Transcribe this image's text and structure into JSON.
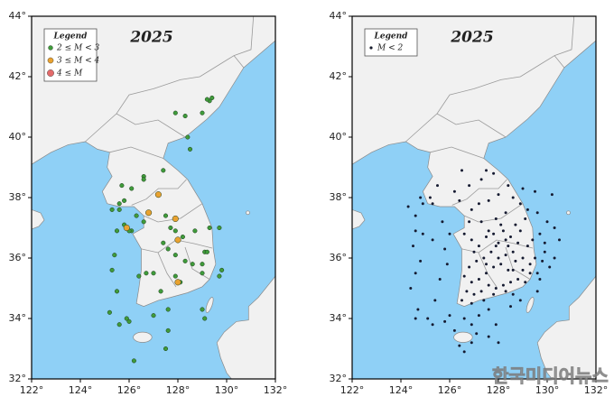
{
  "watermark": "한국미디어뉴스",
  "chart_data": [
    {
      "type": "scatter",
      "title": "2025",
      "legend_title": "Legend",
      "legend": "upper left",
      "xlim": [
        122,
        132
      ],
      "ylim": [
        32,
        44
      ],
      "xticks": [
        {
          "value": 122,
          "label": "122°"
        },
        {
          "value": 124,
          "label": "124°"
        },
        {
          "value": 126,
          "label": "126°"
        },
        {
          "value": 128,
          "label": "128°"
        },
        {
          "value": 130,
          "label": "130°"
        },
        {
          "value": 132,
          "label": "132°"
        }
      ],
      "yticks": [
        {
          "value": 32,
          "label": "32°"
        },
        {
          "value": 34,
          "label": "34°"
        },
        {
          "value": 36,
          "label": "36°"
        },
        {
          "value": 38,
          "label": "38°"
        },
        {
          "value": 40,
          "label": "40°"
        },
        {
          "value": 42,
          "label": "42°"
        },
        {
          "value": 44,
          "label": "44°"
        }
      ],
      "series": [
        {
          "name": "2 ≤ M < 3",
          "color": "#3f9b3a",
          "x": [
            129.3,
            129.4,
            129.2,
            129.0,
            128.3,
            127.9,
            128.4,
            128.5,
            127.4,
            126.6,
            126.6,
            125.7,
            126.1,
            125.8,
            125.6,
            125.3,
            125.6,
            125.8,
            125.5,
            126.1,
            126.3,
            126.6,
            127.5,
            127.7,
            127.9,
            128.2,
            127.4,
            127.6,
            127.9,
            128.3,
            128.7,
            129.3,
            129.7,
            129.1,
            129.2,
            128.6,
            129.0,
            129.8,
            129.7,
            129.0,
            128.1,
            127.9,
            127.0,
            126.7,
            127.3,
            127.6,
            129.0,
            129.1,
            126.4,
            126.0,
            125.4,
            125.3,
            125.5,
            125.2,
            125.9,
            126.0,
            125.6,
            127.0,
            127.6,
            126.2,
            127.5
          ],
          "y": [
            41.2,
            41.3,
            41.25,
            40.8,
            40.7,
            40.8,
            40.0,
            39.6,
            38.9,
            38.7,
            38.6,
            38.4,
            38.3,
            37.9,
            37.8,
            37.6,
            37.6,
            37.1,
            36.9,
            36.9,
            37.4,
            37.2,
            37.4,
            37.0,
            36.9,
            36.7,
            36.5,
            36.3,
            36.1,
            35.9,
            36.9,
            37.0,
            37.0,
            36.2,
            36.2,
            35.8,
            35.8,
            35.6,
            35.4,
            35.5,
            35.2,
            35.4,
            35.5,
            35.5,
            34.9,
            34.3,
            34.3,
            34.0,
            35.4,
            36.9,
            36.1,
            35.6,
            34.9,
            34.2,
            34.0,
            33.9,
            33.8,
            34.1,
            33.6,
            32.6,
            33.0
          ]
        },
        {
          "name": "3 ≤ M < 4",
          "color": "#e9a230",
          "x": [
            127.2,
            126.8,
            127.9,
            125.9,
            128.0,
            128.0
          ],
          "y": [
            38.1,
            37.5,
            37.3,
            37.0,
            36.6,
            35.2
          ]
        },
        {
          "name": "4 ≤ M",
          "color": "#e36a6a",
          "x": [],
          "y": []
        }
      ]
    },
    {
      "type": "scatter",
      "title": "2025",
      "legend_title": "Legend",
      "legend": "upper left",
      "xlim": [
        122,
        132
      ],
      "ylim": [
        32,
        44
      ],
      "xticks": [
        {
          "value": 122,
          "label": "122°"
        },
        {
          "value": 124,
          "label": "124°"
        },
        {
          "value": 126,
          "label": "126°"
        },
        {
          "value": 128,
          "label": "128°"
        },
        {
          "value": 130,
          "label": "130°"
        },
        {
          "value": 132,
          "label": "132°"
        }
      ],
      "yticks": [
        {
          "value": 32,
          "label": "32°"
        },
        {
          "value": 34,
          "label": "34°"
        },
        {
          "value": 36,
          "label": "36°"
        },
        {
          "value": 38,
          "label": "38°"
        },
        {
          "value": 40,
          "label": "40°"
        },
        {
          "value": 42,
          "label": "42°"
        },
        {
          "value": 44,
          "label": "44°"
        }
      ],
      "series": [
        {
          "name": "M < 2",
          "color": "#151a30",
          "x": [
            126.8,
            126.2,
            127.3,
            127.8,
            126.5,
            127.5,
            125.5,
            125.2,
            124.8,
            124.9,
            125.3,
            124.3,
            124.6,
            124.6,
            124.5,
            124.8,
            124.6,
            124.4,
            124.7,
            124.6,
            125.1,
            125.4,
            125.6,
            125.9,
            125.8,
            125.3,
            125.7,
            126.0,
            124.9,
            126.4,
            126.9,
            127.2,
            127.6,
            128.0,
            128.4,
            128.6,
            128.9,
            129.1,
            128.3,
            127.9,
            127.3,
            126.8,
            126.6,
            126.9,
            127.2,
            127.5,
            127.8,
            128.0,
            128.2,
            128.5,
            128.8,
            128.6,
            128.3,
            128.0,
            127.7,
            127.4,
            127.1,
            126.8,
            126.6,
            126.9,
            127.2,
            127.5,
            127.8,
            128.1,
            128.4,
            128.7,
            129.0,
            129.2,
            129.4,
            129.5,
            129.3,
            129.0,
            128.8,
            128.5,
            128.2,
            127.9,
            127.6,
            127.3,
            127.0,
            126.7,
            126.5,
            126.9,
            127.4,
            127.8,
            128.3,
            128.6,
            129.1,
            129.6,
            129.8,
            129.9,
            129.7,
            129.9,
            130.1,
            129.7,
            129.6,
            128.9,
            128.5,
            127.6,
            127.2,
            126.6,
            126.0,
            125.8,
            125.3,
            126.9,
            126.2,
            127.6,
            128.0,
            127.9,
            127.1,
            126.4,
            126.9,
            126.6,
            127.6,
            128.1,
            127.0,
            128.7,
            129.2,
            128.9,
            128.4,
            127.9,
            128.6,
            128.3,
            127.5,
            129.3,
            130.3,
            130.5,
            130.3,
            129.6,
            129.0,
            129.5,
            130.0,
            130.2
          ],
          "y": [
            38.4,
            38.2,
            38.6,
            38.8,
            38.9,
            38.9,
            38.4,
            38.0,
            38.0,
            37.8,
            37.8,
            37.7,
            37.4,
            36.9,
            36.4,
            35.9,
            35.5,
            35.0,
            34.3,
            34.0,
            34.0,
            34.6,
            35.3,
            35.8,
            36.3,
            36.6,
            37.2,
            36.8,
            36.8,
            37.9,
            37.6,
            37.8,
            37.9,
            38.1,
            38.4,
            38.0,
            37.8,
            37.3,
            37.5,
            37.3,
            37.2,
            37.2,
            36.8,
            36.6,
            36.4,
            36.7,
            36.8,
            36.5,
            36.9,
            36.7,
            36.5,
            36.2,
            36.1,
            36.0,
            36.2,
            36.0,
            35.9,
            35.7,
            35.4,
            35.2,
            35.3,
            35.5,
            35.7,
            35.8,
            35.6,
            35.9,
            36.0,
            36.4,
            36.6,
            36.0,
            35.8,
            35.6,
            35.3,
            35.2,
            35.1,
            35.0,
            35.1,
            34.9,
            34.8,
            34.9,
            34.6,
            34.5,
            34.6,
            34.8,
            34.9,
            34.8,
            35.2,
            35.5,
            35.9,
            36.2,
            36.8,
            36.5,
            35.7,
            35.3,
            34.9,
            34.6,
            34.4,
            34.3,
            34.1,
            34.0,
            34.1,
            33.9,
            33.8,
            33.8,
            33.6,
            33.4,
            33.2,
            33.8,
            33.5,
            33.1,
            33.2,
            32.9,
            36.9,
            37.1,
            36.2,
            37.1,
            37.6,
            36.9,
            36.4,
            36.4,
            35.6,
            36.6,
            35.8,
            35.5,
            36.0,
            36.6,
            37.0,
            37.5,
            38.3,
            38.2,
            37.2,
            38.1
          ]
        }
      ]
    }
  ]
}
